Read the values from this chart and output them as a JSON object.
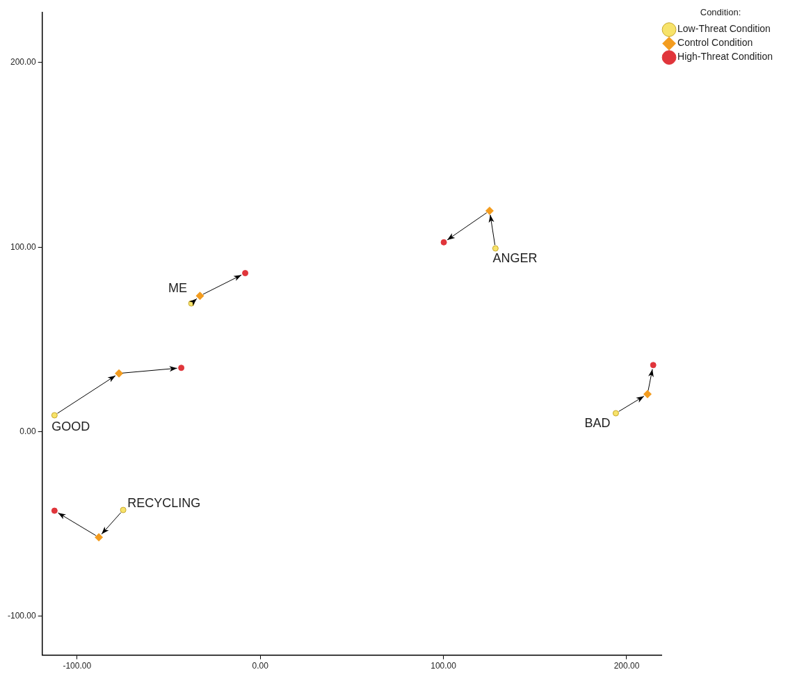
{
  "chart_data": {
    "type": "scatter",
    "legend_title": "Condition:",
    "legend": "top right",
    "grid": false,
    "xlim": [
      -119,
      219
    ],
    "ylim": [
      -121,
      227
    ],
    "xticks": [
      {
        "value": -100,
        "label": "-100.00"
      },
      {
        "value": 0,
        "label": "0.00"
      },
      {
        "value": 100,
        "label": "100.00"
      },
      {
        "value": 200,
        "label": "200.00"
      }
    ],
    "yticks": [
      {
        "value": -100,
        "label": "-100.00"
      },
      {
        "value": 0,
        "label": "0.00"
      },
      {
        "value": 100,
        "label": "100.00"
      },
      {
        "value": 200,
        "label": "200.00"
      }
    ],
    "series": [
      {
        "name": "Low-Threat Condition",
        "color": "#f7e36b",
        "marker": "circle",
        "x": [
          -112.3,
          -37.6,
          -74.8,
          128.4,
          194.1
        ],
        "values": [
          8.9,
          69.5,
          -42.4,
          99.3,
          10.0
        ]
      },
      {
        "name": "Control Condition",
        "color": "#f39c1f",
        "marker": "diamond",
        "x": [
          -77.1,
          -32.9,
          -88.1,
          125.2,
          211.4
        ],
        "values": [
          31.6,
          73.6,
          -57.2,
          119.7,
          20.4
        ]
      },
      {
        "name": "High-Threat Condition",
        "color": "#e0353b",
        "marker": "circle",
        "x": [
          -43.1,
          -8.2,
          -112.3,
          100.2,
          214.5
        ],
        "values": [
          34.6,
          85.9,
          -42.8,
          102.6,
          36.1
        ]
      }
    ],
    "annotations": [
      {
        "text": "GOOD",
        "x": -112.3,
        "y": 8.9
      },
      {
        "text": "ME",
        "x": -37.6,
        "y": 69.5
      },
      {
        "text": "RECYCLING",
        "x": -74.8,
        "y": -42.4
      },
      {
        "text": "ANGER",
        "x": 128.4,
        "y": 99.3
      },
      {
        "text": "BAD",
        "x": 194.1,
        "y": 10.0
      }
    ]
  }
}
